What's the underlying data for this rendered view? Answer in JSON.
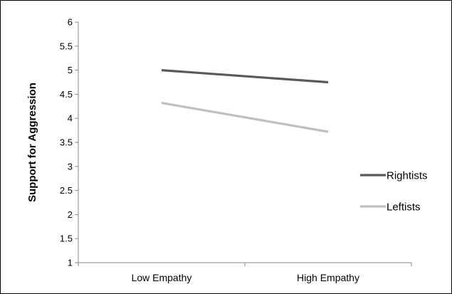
{
  "chart_data": {
    "type": "line",
    "categories": [
      "Low Empathy",
      "High Empathy"
    ],
    "series": [
      {
        "name": "Rightists",
        "values": [
          5.0,
          4.75
        ],
        "color": "#5a5a5a"
      },
      {
        "name": "Leftists",
        "values": [
          4.32,
          3.72
        ],
        "color": "#bfbfbf"
      }
    ],
    "title": "",
    "xlabel": "",
    "ylabel": "Support for Aggression",
    "ylim": [
      1,
      6
    ],
    "yticks": [
      "1",
      "1.5",
      "2",
      "2.5",
      "3",
      "3.5",
      "4",
      "4.5",
      "5",
      "5.5",
      "6"
    ],
    "grid": false,
    "legend": "right"
  }
}
